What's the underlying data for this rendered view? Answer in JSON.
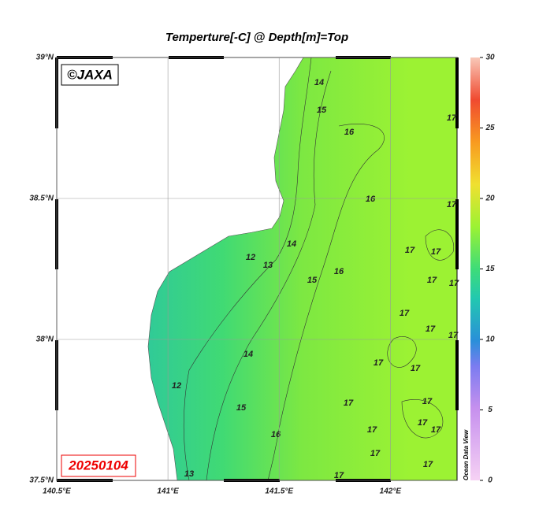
{
  "title": "Temperture[-C] @ Depth[m]=Top",
  "copyright": "©JAXA",
  "date": "20250104",
  "watermark": "Ocean Data View",
  "map": {
    "xlim": [
      140.5,
      142.3
    ],
    "ylim": [
      37.5,
      39
    ],
    "xticks": [
      {
        "value": 140.5,
        "label": "140.5°E"
      },
      {
        "value": 141,
        "label": "141°E"
      },
      {
        "value": 141.5,
        "label": "141.5°E"
      },
      {
        "value": 142,
        "label": "142°E"
      }
    ],
    "yticks": [
      {
        "value": 37.5,
        "label": "37.5°N"
      },
      {
        "value": 38,
        "label": "38°N"
      },
      {
        "value": 38.5,
        "label": "38.5°N"
      },
      {
        "value": 39,
        "label": "39°N"
      }
    ],
    "grid": true
  },
  "colorbar": {
    "lim": [
      0,
      30
    ],
    "ticks": [
      0,
      5,
      10,
      15,
      20,
      25,
      30
    ]
  },
  "contour_labels": [
    "14",
    "15",
    "16",
    "17",
    "17",
    "16",
    "17",
    "12",
    "13",
    "14",
    "15",
    "16",
    "17",
    "17",
    "17",
    "17",
    "17",
    "12",
    "14",
    "17",
    "17",
    "15",
    "17",
    "17",
    "16",
    "17",
    "17",
    "17",
    "17",
    "13",
    "17",
    "17",
    "17"
  ]
}
